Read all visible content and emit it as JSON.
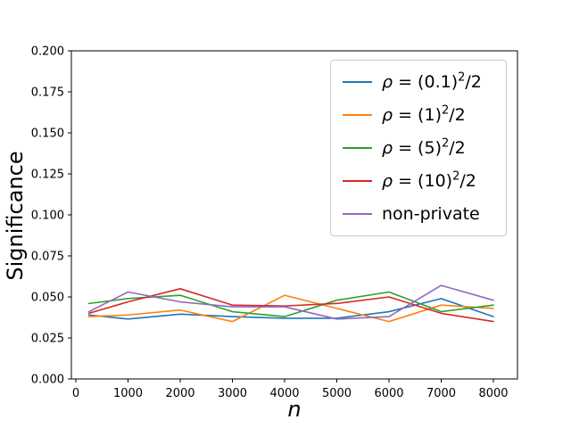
{
  "figure": {
    "background": "#ffffff",
    "axes_edge_color": "#000000"
  },
  "chart_data": {
    "type": "line",
    "title": "",
    "xlabel": "n",
    "ylabel": "Significance",
    "xlim_ticks": [
      0,
      8000
    ],
    "ylim": [
      0.0,
      0.2
    ],
    "grid": false,
    "legend_position": "upper right",
    "x_ticks": [
      0,
      1000,
      2000,
      3000,
      4000,
      5000,
      6000,
      7000,
      8000
    ],
    "x_tick_labels": [
      "0",
      "1000",
      "2000",
      "3000",
      "4000",
      "5000",
      "6000",
      "7000",
      "8000"
    ],
    "y_ticks": [
      0.0,
      0.025,
      0.05,
      0.075,
      0.1,
      0.125,
      0.15,
      0.175,
      0.2
    ],
    "y_tick_labels": [
      "0.000",
      "0.025",
      "0.050",
      "0.075",
      "0.100",
      "0.125",
      "0.150",
      "0.175",
      "0.200"
    ],
    "x": [
      250,
      1000,
      2000,
      3000,
      4000,
      5000,
      6000,
      7000,
      8000
    ],
    "series": [
      {
        "name": "rho-0.1-squared-over-2",
        "label": "ρ = (0.1)²/2",
        "label_parts": {
          "rho": "ρ",
          "pre": " = (0.1)",
          "sup": "2",
          "post": "/2"
        },
        "color": "#1f77b4",
        "values": [
          0.039,
          0.0365,
          0.0395,
          0.038,
          0.037,
          0.037,
          0.041,
          0.049,
          0.038
        ]
      },
      {
        "name": "rho-1-squared-over-2",
        "label": "ρ = (1)²/2",
        "label_parts": {
          "rho": "ρ",
          "pre": " = (1)",
          "sup": "2",
          "post": "/2"
        },
        "color": "#ff7f0e",
        "values": [
          0.038,
          0.039,
          0.042,
          0.035,
          0.051,
          0.043,
          0.035,
          0.045,
          0.043
        ]
      },
      {
        "name": "rho-5-squared-over-2",
        "label": "ρ = (5)²/2",
        "label_parts": {
          "rho": "ρ",
          "pre": " = (5)",
          "sup": "2",
          "post": "/2"
        },
        "color": "#2ca02c",
        "values": [
          0.046,
          0.049,
          0.051,
          0.041,
          0.038,
          0.048,
          0.053,
          0.041,
          0.045
        ]
      },
      {
        "name": "rho-10-squared-over-2",
        "label": "ρ = (10)²/2",
        "label_parts": {
          "rho": "ρ",
          "pre": " = (10)",
          "sup": "2",
          "post": "/2"
        },
        "color": "#d62728",
        "values": [
          0.04,
          0.047,
          0.055,
          0.045,
          0.0445,
          0.046,
          0.05,
          0.04,
          0.035
        ]
      },
      {
        "name": "non-private",
        "label": "non-private",
        "label_parts": {
          "rho": "",
          "pre": "non-private",
          "sup": "",
          "post": ""
        },
        "color": "#9467bd",
        "values": [
          0.041,
          0.053,
          0.047,
          0.044,
          0.044,
          0.0365,
          0.038,
          0.057,
          0.048
        ]
      }
    ]
  }
}
